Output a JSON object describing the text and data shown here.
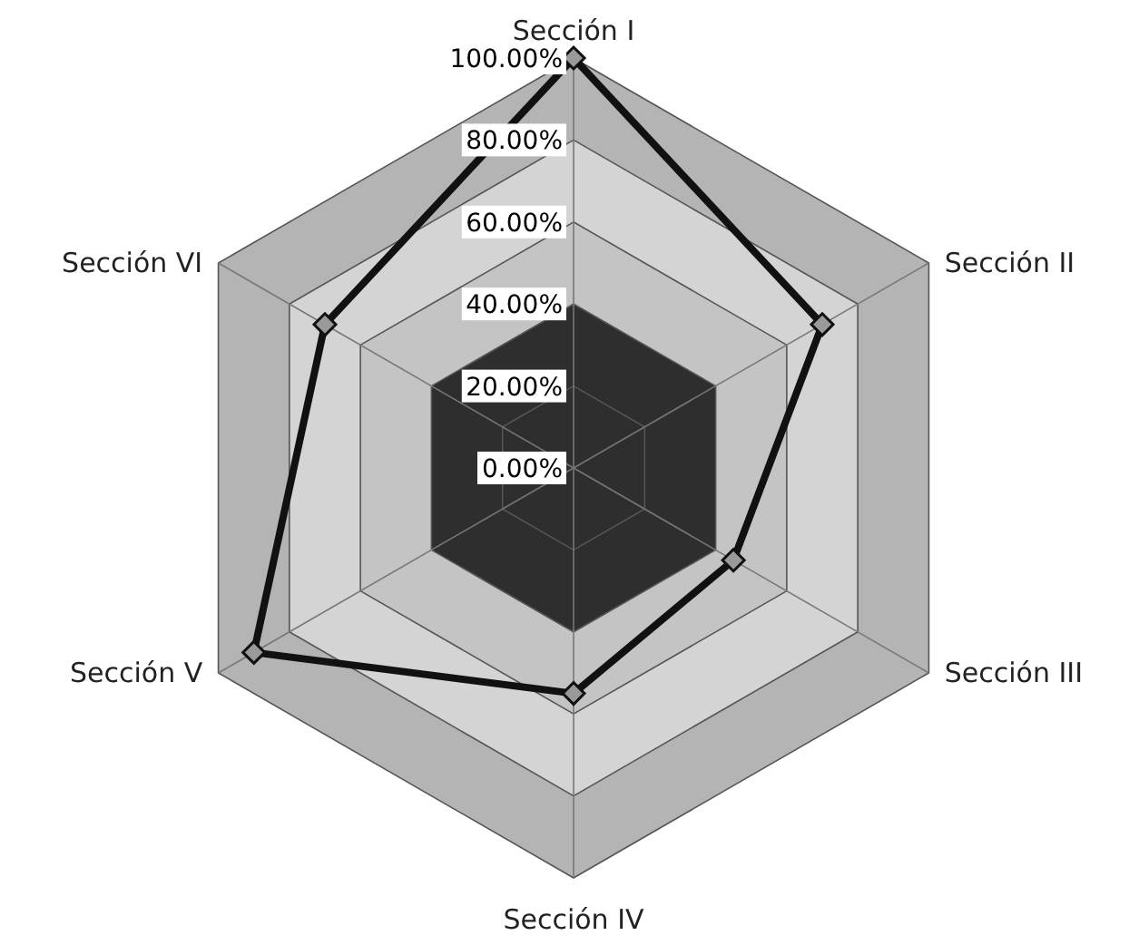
{
  "chart_data": {
    "type": "radar",
    "categories": [
      "Sección I",
      "Sección II",
      "Sección III",
      "Sección IV",
      "Sección V",
      "Sección VI"
    ],
    "series": [
      {
        "color": "#111111",
        "values": [
          100,
          70,
          45,
          55,
          90,
          70
        ]
      }
    ],
    "ylim": [
      0,
      100
    ],
    "yticks": [
      {
        "value": 0,
        "label": "0.00%"
      },
      {
        "value": 20,
        "label": "20.00%"
      },
      {
        "value": 40,
        "label": "40.00%"
      },
      {
        "value": 60,
        "label": "60.00%"
      },
      {
        "value": 80,
        "label": "80.00%"
      },
      {
        "value": 100,
        "label": "100.00%"
      }
    ],
    "grid": true,
    "marker": "diamond",
    "line_style": "solid"
  }
}
